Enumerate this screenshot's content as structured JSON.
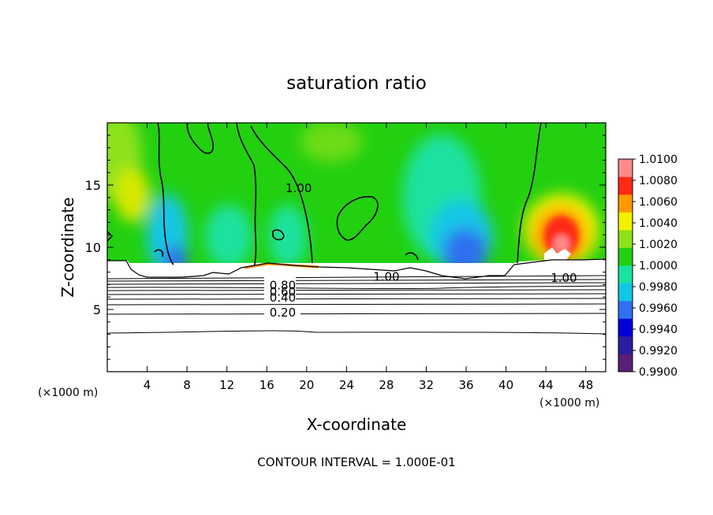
{
  "chart_data": {
    "type": "heatmap",
    "title": "saturation ratio",
    "xlabel": "X-coordinate",
    "ylabel": "Z-coordinate",
    "x_unit_left": "(×1000 m)",
    "x_unit_right": "(×1000 m)",
    "xlim": [
      0,
      50
    ],
    "ylim": [
      0,
      20
    ],
    "x_ticks": [
      4,
      8,
      12,
      16,
      20,
      24,
      28,
      32,
      36,
      40,
      44,
      48
    ],
    "y_ticks": [
      5,
      10,
      15
    ],
    "colorbar": {
      "min": 0.99,
      "max": 1.01,
      "labels": [
        "1.0100",
        "1.0080",
        "1.0060",
        "1.0040",
        "1.0020",
        "1.0000",
        "0.9980",
        "0.9960",
        "0.9940",
        "0.9920",
        "0.9900"
      ],
      "colors": [
        "#5a1f78",
        "#2a1fa0",
        "#0000d8",
        "#2f6ff0",
        "#12c6e6",
        "#1ae2a0",
        "#22d010",
        "#8ee21a",
        "#f2f200",
        "#ff9a00",
        "#ff2a14",
        "#ff8a8a"
      ]
    },
    "contour_labels": [
      {
        "text": "1.00",
        "x": 19.2,
        "z": 14.8
      },
      {
        "text": "1.00",
        "x": 28.0,
        "z": 7.7
      },
      {
        "text": "1.00",
        "x": 45.8,
        "z": 7.6
      },
      {
        "text": "0.80",
        "x": 17.6,
        "z": 7.0
      },
      {
        "text": "0.60",
        "x": 17.6,
        "z": 6.5
      },
      {
        "text": "0.40",
        "x": 17.6,
        "z": 6.0
      },
      {
        "text": "0.20",
        "x": 17.6,
        "z": 4.8
      }
    ],
    "contour_interval": "CONTOUR INTERVAL = 1.000E-01"
  }
}
